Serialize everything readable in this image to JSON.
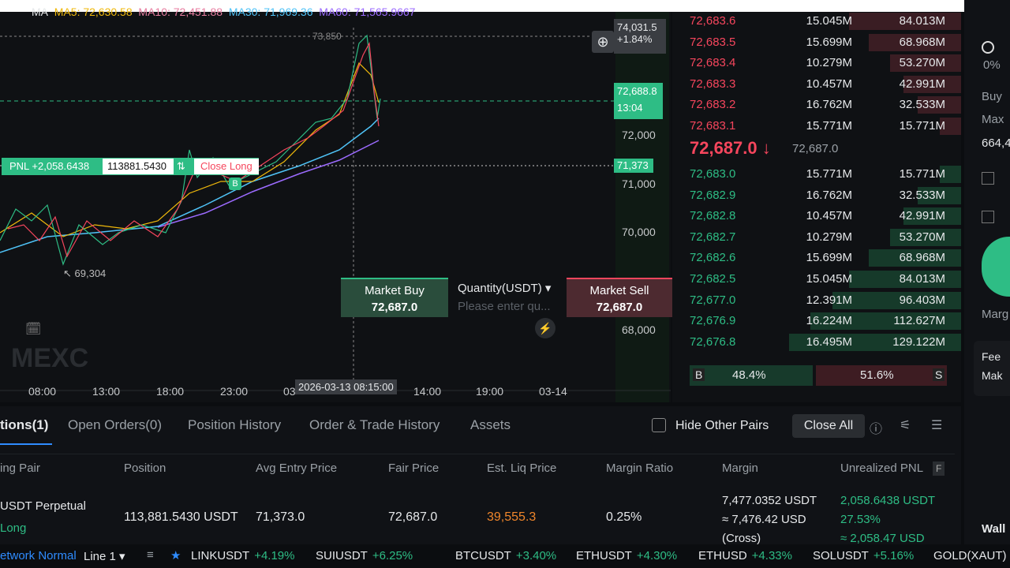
{
  "chart_header": {
    "ma": "MA",
    "ma5": "MA5: 72,630.58",
    "ma10": "MA10: 72,451.88",
    "ma30": "MA30: 71,969.36",
    "ma60": "MA60: 71,565.9667"
  },
  "price_axis": {
    "crosshair_price": "74,031.5",
    "crosshair_change": "+1.84%",
    "last_price": "72,688.8",
    "countdown": "13:04",
    "entry_price": "71,373",
    "labels": [
      "72,000",
      "71,000",
      "70,000",
      "68,000"
    ]
  },
  "chart_marks": {
    "high": "73,850",
    "low": "69,304",
    "buy_marker": "B",
    "watermark": "MEXC"
  },
  "time_axis": {
    "labels": [
      "08:00",
      "13:00",
      "18:00",
      "23:00",
      "03",
      "14:00",
      "19:00",
      "03-14"
    ],
    "crosshair_time": "2026-03-13 08:15:00"
  },
  "position_line": {
    "pnl": "PNL +2,058.6438",
    "size": "113881.5430",
    "close": "Close Long"
  },
  "quick_trade": {
    "buy_label": "Market Buy",
    "buy_price": "72,687.0",
    "quantity_label": "Quantity(USDT)",
    "placeholder": "Please enter qu...",
    "sell_label": "Market Sell",
    "sell_price": "72,687.0"
  },
  "orderbook": {
    "asks": [
      [
        "72,683.6",
        "15.045M",
        "84.013M"
      ],
      [
        "72,683.5",
        "15.699M",
        "68.968M"
      ],
      [
        "72,683.4",
        "10.279M",
        "53.270M"
      ],
      [
        "72,683.3",
        "10.457M",
        "42.991M"
      ],
      [
        "72,683.2",
        "16.762M",
        "32.533M"
      ],
      [
        "72,683.1",
        "15.771M",
        "15.771M"
      ]
    ],
    "mid_price": "72,687.0 ↓",
    "mark_price": "72,687.0",
    "bids": [
      [
        "72,683.0",
        "15.771M",
        "15.771M"
      ],
      [
        "72,682.9",
        "16.762M",
        "32.533M"
      ],
      [
        "72,682.8",
        "10.457M",
        "42.991M"
      ],
      [
        "72,682.7",
        "10.279M",
        "53.270M"
      ],
      [
        "72,682.6",
        "15.699M",
        "68.968M"
      ],
      [
        "72,682.5",
        "15.045M",
        "84.013M"
      ],
      [
        "72,677.0",
        "12.391M",
        "96.403M"
      ],
      [
        "72,676.9",
        "16.224M",
        "112.627M"
      ],
      [
        "72,676.8",
        "16.495M",
        "129.122M"
      ]
    ],
    "buy_tag": "B",
    "buy_ratio": "48.4%",
    "sell_ratio": "51.6%",
    "sell_tag": "S"
  },
  "side_panel": {
    "percent": "0%",
    "buy": "Buy",
    "max": "Max",
    "max_value": "664,4",
    "margin": "Marg",
    "fee": "Fee",
    "maker": "Mak",
    "wallet": "Wall"
  },
  "tabs": [
    "tions(1)",
    "Open Orders(0)",
    "Position History",
    "Order & Trade History",
    "Assets"
  ],
  "toolbar": {
    "hide_other": "Hide Other Pairs",
    "close_all": "Close All"
  },
  "table": {
    "headers": [
      "ing Pair",
      "Position",
      "Avg Entry Price",
      "Fair Price",
      "Est. Liq Price",
      "Margin Ratio",
      "Margin",
      "Unrealized PNL"
    ],
    "pnl_flag": "F",
    "row": {
      "pair": "USDT  Perpetual",
      "side": "Long",
      "position": "113,881.5430 USDT",
      "avg_entry": "71,373.0",
      "fair": "72,687.0",
      "liq": "39,555.3",
      "ratio": "0.25%",
      "margin": "7,477.0352 USDT",
      "margin_usd": "≈ 7,476.42 USD",
      "margin_mode": "(Cross)",
      "pnl": "2,058.6438 USDT",
      "pnl_pct": "27.53%",
      "pnl_usd": "≈ 2,058.47 USD"
    }
  },
  "ticker": {
    "network": "etwork Normal",
    "line": "Line 1 ▾",
    "items": [
      [
        "LINKUSDT",
        "+4.19%"
      ],
      [
        "SUIUSDT",
        "+6.25%"
      ],
      [
        "BTCUSDT",
        "+3.40%"
      ],
      [
        "ETHUSDT",
        "+4.30%"
      ],
      [
        "ETHUSD",
        "+4.33%"
      ],
      [
        "SOLUSDT",
        "+5.16%"
      ],
      [
        "GOLD(XAUT)",
        ""
      ]
    ]
  }
}
